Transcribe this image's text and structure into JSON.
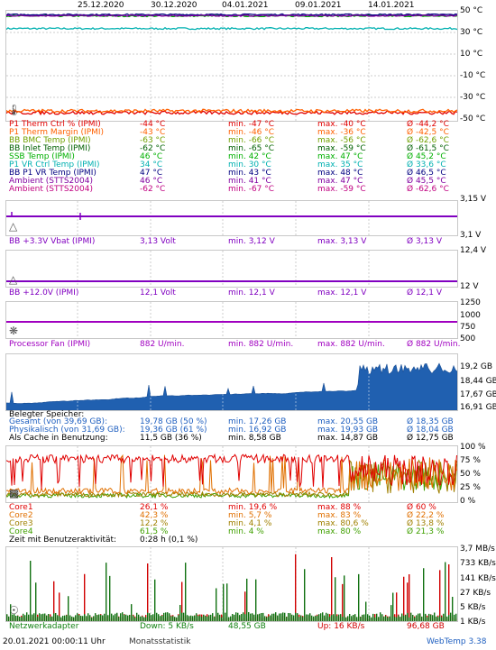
{
  "dates": [
    "25.12.2020",
    "30.12.2020",
    "04.01.2021",
    "09.01.2021",
    "14.01.2021"
  ],
  "temp": {
    "ylabels": [
      "50 °C",
      "30 °C",
      "10 °C",
      "-10 °C",
      "-30 °C",
      "-50 °C"
    ],
    "rows": [
      {
        "name": "P1 Therm Ctrl % (IPMI)",
        "cur": "-44 °C",
        "min": "min. -47 °C",
        "max": "max. -40 °C",
        "avg": "Ø -44,2 °C",
        "color": "#e00000"
      },
      {
        "name": "P1 Therm Margin (IPMI)",
        "cur": "-43 °C",
        "min": "min. -46 °C",
        "max": "max. -36 °C",
        "avg": "Ø -42,5 °C",
        "color": "#ff6000"
      },
      {
        "name": "BB BMC Temp (IPMI)",
        "cur": "-63 °C",
        "min": "min. -66 °C",
        "max": "max. -56 °C",
        "avg": "Ø -62,6 °C",
        "color": "#70a000"
      },
      {
        "name": "BB Inlet Temp (IPMI)",
        "cur": "-62 °C",
        "min": "min. -65 °C",
        "max": "max. -59 °C",
        "avg": "Ø -61,5 °C",
        "color": "#006000"
      },
      {
        "name": "SSB Temp (IPMI)",
        "cur": "46 °C",
        "min": "min. 42 °C",
        "max": "max. 47 °C",
        "avg": "Ø 45,2 °C",
        "color": "#00b000"
      },
      {
        "name": "P1 VR Ctrl Temp (IPMI)",
        "cur": "34 °C",
        "min": "min. 30 °C",
        "max": "max. 35 °C",
        "avg": "Ø 33,6 °C",
        "color": "#00b0b0"
      },
      {
        "name": "BB P1 VR Temp (IPMI)",
        "cur": "47 °C",
        "min": "min. 43 °C",
        "max": "max. 48 °C",
        "avg": "Ø 46,5 °C",
        "color": "#000080"
      },
      {
        "name": "Ambient (STTS2004)",
        "cur": "46 °C",
        "min": "min. 41 °C",
        "max": "max. 47 °C",
        "avg": "Ø 45,5 °C",
        "color": "#8000a0"
      },
      {
        "name": "Ambient (STTS2004)",
        "cur": "-62 °C",
        "min": "min. -67 °C",
        "max": "max. -59 °C",
        "avg": "Ø -62,6 °C",
        "color": "#c00080"
      }
    ]
  },
  "v33": {
    "ylabels": [
      "3,15 V",
      "3,1 V"
    ],
    "name": "BB +3.3V Vbat (IPMI)",
    "cur": "3,13 Volt",
    "min": "min. 3,12 V",
    "max": "max. 3,13 V",
    "avg": "Ø 3,13 V",
    "color": "#8000c0"
  },
  "v12": {
    "ylabels": [
      "12,4 V",
      "12 V"
    ],
    "name": "BB +12.0V (IPMI)",
    "cur": "12,1 Volt",
    "min": "min. 12,1 V",
    "max": "max. 12,1 V",
    "avg": "Ø 12,1 V",
    "color": "#8000c0"
  },
  "fan": {
    "ylabels": [
      "1250",
      "1000",
      "750",
      "500"
    ],
    "name": "Processor Fan (IPMI)",
    "cur": "882 U/min.",
    "min": "min. 882 U/min.",
    "max": "max. 882 U/min.",
    "avg": "Ø 882 U/min.",
    "color": "#a000c0"
  },
  "mem": {
    "ylabels": [
      "19,2 GB",
      "18,44 GB",
      "17,67 GB",
      "16,91 GB"
    ],
    "heading": "Belegter Speicher:",
    "rows": [
      {
        "name": "Gesamt (von 39,69 GB):",
        "cur": "19,78 GB (50 %)",
        "min": "min. 17,26 GB",
        "max": "max. 20,55 GB",
        "avg": "Ø 18,35 GB",
        "color": "#2060c0"
      },
      {
        "name": "Physikalisch (von 31,69 GB):",
        "cur": "19,36 GB (61 %)",
        "min": "min. 16,92 GB",
        "max": "max. 19,93 GB",
        "avg": "Ø 18,04 GB",
        "color": "#2060c0"
      },
      {
        "name": "Als Cache in Benutzung:",
        "cur": "11,5 GB (36 %)",
        "min": "min. 8,58 GB",
        "max": "max. 14,87 GB",
        "avg": "Ø 12,75 GB",
        "color": "#000000"
      }
    ]
  },
  "cpu": {
    "ylabels": [
      "100 %",
      "75 %",
      "50 %",
      "25 %",
      "0 %"
    ],
    "rows": [
      {
        "name": "Core1",
        "cur": "26,1 %",
        "min": "min. 19,6 %",
        "max": "max. 88 %",
        "avg": "Ø 60 %",
        "color": "#e00000"
      },
      {
        "name": "Core2",
        "cur": "42,3 %",
        "min": "min. 5,7 %",
        "max": "max. 83 %",
        "avg": "Ø 22,2 %",
        "color": "#e07000"
      },
      {
        "name": "Core3",
        "cur": "12,2 %",
        "min": "min. 4,1 %",
        "max": "max. 80,6 %",
        "avg": "Ø 13,8 %",
        "color": "#a08000"
      },
      {
        "name": "Core4",
        "cur": "61,5 %",
        "min": "min. 4 %",
        "max": "max. 80 %",
        "avg": "Ø 21,3 %",
        "color": "#40a000"
      }
    ],
    "activity_label": "Zeit mit Benutzeraktivität:",
    "activity_value": "0:28 h (0,1 %)"
  },
  "net": {
    "ylabels": [
      "3,7 MB/s",
      "733 KB/s",
      "141 KB/s",
      "27 KB/s",
      "5 KB/s",
      "1 KB/s"
    ],
    "name": "Netzwerkadapter",
    "down": "Down: 5 KB/s",
    "down_total": "48,55 GB",
    "up": "Up: 16 KB/s",
    "up_total": "96,68 GB"
  },
  "footer": {
    "timestamp": "20.01.2021 00:00:11 Uhr",
    "stat": "Monatsstatistik",
    "brand": "WebTemp 3.38"
  }
}
